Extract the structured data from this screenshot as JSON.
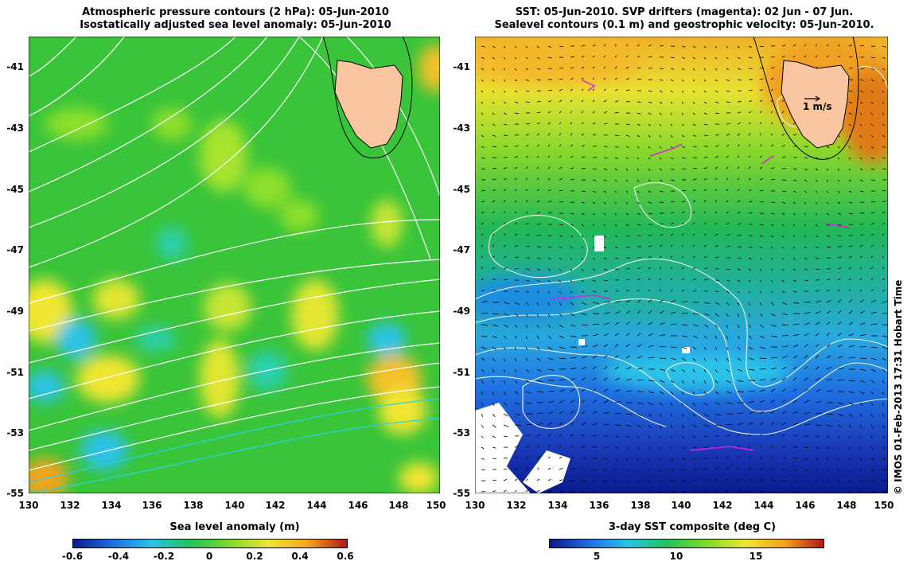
{
  "left": {
    "title_line1": "Atmospheric pressure contours (2 hPa): 05-Jun-2010",
    "title_line2": "Isostatically adjusted sea level anomaly: 05-Jun-2010",
    "y_ticks": [
      "-41",
      "-43",
      "-45",
      "-47",
      "-49",
      "-51",
      "-53",
      "-55"
    ],
    "x_ticks": [
      "130",
      "132",
      "134",
      "136",
      "138",
      "140",
      "142",
      "144",
      "146",
      "148",
      "150"
    ],
    "colorbar_title": "Sea level anomaly (m)",
    "colorbar_ticks": [
      "-0.6",
      "-0.4",
      "-0.2",
      "0",
      "0.2",
      "0.4",
      "0.6"
    ],
    "colorbar_range": [
      -0.6,
      0.6
    ]
  },
  "right": {
    "title_line1": "SST: 05-Jun-2010. SVP drifters (magenta): 02 Jun - 07 Jun.",
    "title_line2": "Sealevel contours (0.1 m) and geostrophic velocity: 05-Jun-2010.",
    "y_ticks": [
      "-41",
      "-43",
      "-45",
      "-47",
      "-49",
      "-51",
      "-53",
      "-55"
    ],
    "x_ticks": [
      "130",
      "132",
      "134",
      "136",
      "138",
      "140",
      "142",
      "144",
      "146",
      "148",
      "150"
    ],
    "scale_label": "1 m/s",
    "colorbar_title": "3-day SST composite (deg C)",
    "colorbar_ticks": [
      "5",
      "10",
      "15"
    ],
    "colorbar_range": [
      1,
      19
    ]
  },
  "credit": "© IMOS 01-Feb-2013 17:31 Hobart Time",
  "colors": {
    "land": "#f9c6a1",
    "sla_scale": [
      "#0a1a8c",
      "#1f7fe0",
      "#29c3e8",
      "#22c25a",
      "#7edc2a",
      "#f0e632",
      "#f4a41e",
      "#b01818"
    ],
    "sst_scale": [
      "#0a1a8c",
      "#1f6ee0",
      "#29c3e8",
      "#22c25a",
      "#7edc2a",
      "#f0e632",
      "#f4a41e",
      "#b01818"
    ]
  }
}
